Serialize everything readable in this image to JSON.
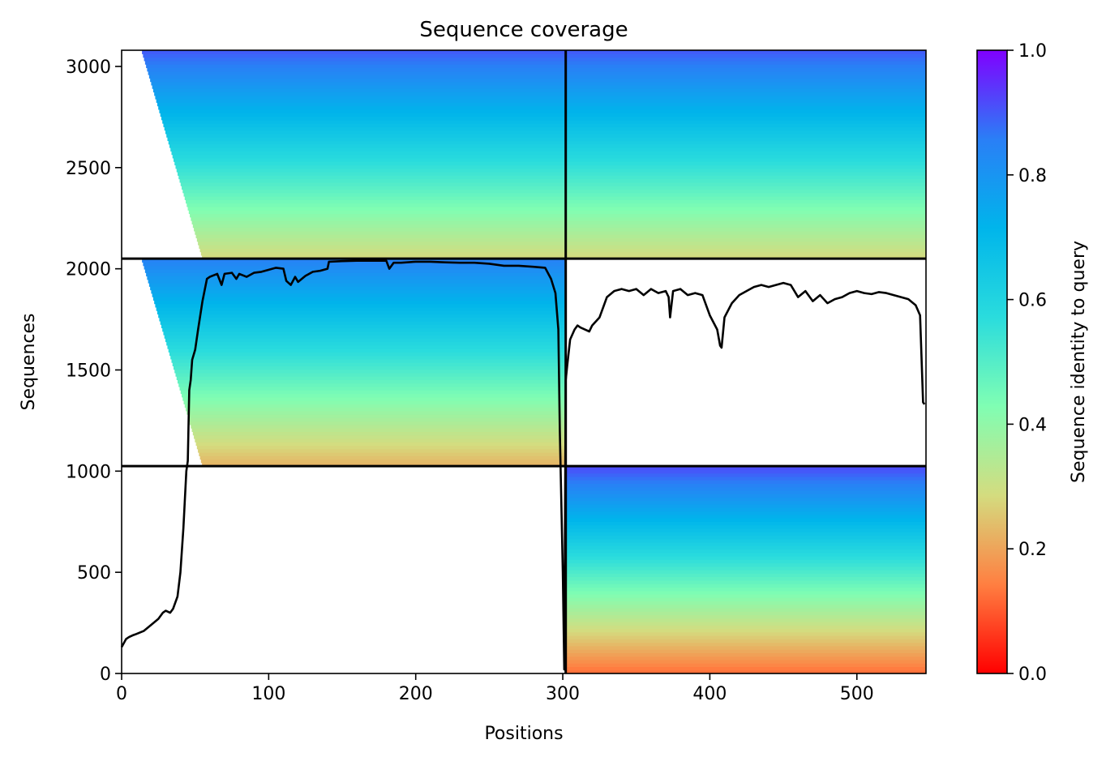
{
  "chart_data": {
    "type": "heatmap",
    "title": "Sequence coverage",
    "xlabel": "Positions",
    "ylabel": "Sequences",
    "xlim": [
      0,
      547
    ],
    "ylim": [
      0,
      3080
    ],
    "grid": false,
    "x_ticks": [
      0,
      100,
      200,
      300,
      400,
      500
    ],
    "x_tick_labels": [
      "0",
      "100",
      "200",
      "300",
      "400",
      "500"
    ],
    "y_ticks": [
      0,
      500,
      1000,
      1500,
      2000,
      2500,
      3000
    ],
    "y_tick_labels": [
      "0",
      "500",
      "1000",
      "1500",
      "2000",
      "2500",
      "3000"
    ],
    "colorbar": {
      "label": "Sequence identity to query",
      "colormap": "rainbow_r",
      "range": [
        0,
        1
      ],
      "ticks": [
        0,
        0.2,
        0.4,
        0.6,
        0.8,
        1.0
      ],
      "tick_labels": [
        "0.0",
        "0.2",
        "0.4",
        "0.6",
        "0.8",
        "1.0"
      ],
      "stops": [
        "#ff0000",
        "#ff7f41",
        "#d4dc7f",
        "#80feb3",
        "#2adcdd",
        "#00b5eb",
        "#2a7ff6",
        "#8000ff"
      ]
    },
    "chain_boundary_x": [
      302
    ],
    "block_boundary_y": [
      1025,
      2050
    ],
    "blocks": [
      {
        "rows": [
          2050,
          3080
        ],
        "cols": [
          0,
          302
        ],
        "coverage_start": 45,
        "identity_top": 0.9,
        "identity_bottom": 0.28
      },
      {
        "rows": [
          2050,
          3080
        ],
        "cols": [
          302,
          547
        ],
        "coverage_start": 302,
        "identity_top": 0.9,
        "identity_bottom": 0.28
      },
      {
        "rows": [
          1025,
          2050
        ],
        "cols": [
          0,
          302
        ],
        "coverage_start": 45,
        "identity_top": 0.85,
        "identity_bottom": 0.22
      },
      {
        "rows": [
          0,
          1025
        ],
        "cols": [
          302,
          547
        ],
        "coverage_start": 302,
        "identity_top": 0.92,
        "identity_bottom": 0.12
      }
    ],
    "coverage_line": {
      "x": [
        0,
        3,
        5,
        8,
        10,
        15,
        20,
        25,
        28,
        30,
        33,
        35,
        38,
        40,
        42,
        44,
        45,
        46,
        47,
        48,
        50,
        52,
        55,
        58,
        60,
        65,
        68,
        70,
        75,
        78,
        80,
        85,
        90,
        95,
        100,
        105,
        110,
        112,
        115,
        118,
        120,
        125,
        130,
        135,
        140,
        141,
        150,
        160,
        170,
        180,
        182,
        185,
        190,
        200,
        210,
        220,
        230,
        240,
        250,
        260,
        270,
        280,
        288,
        292,
        295,
        297,
        298,
        300,
        301,
        302,
        303,
        305,
        308,
        310,
        312,
        315,
        318,
        320,
        325,
        330,
        335,
        340,
        345,
        350,
        355,
        360,
        365,
        370,
        372,
        373,
        375,
        380,
        385,
        390,
        395,
        400,
        405,
        407,
        408,
        410,
        415,
        420,
        425,
        430,
        435,
        440,
        445,
        450,
        455,
        460,
        465,
        470,
        475,
        480,
        485,
        490,
        495,
        500,
        505,
        510,
        515,
        520,
        525,
        530,
        535,
        540,
        543,
        545,
        546
      ],
      "y": [
        130,
        170,
        180,
        190,
        195,
        210,
        240,
        270,
        300,
        310,
        300,
        320,
        380,
        500,
        720,
        1000,
        1050,
        1400,
        1450,
        1550,
        1600,
        1700,
        1840,
        1950,
        1960,
        1975,
        1920,
        1975,
        1980,
        1950,
        1975,
        1960,
        1980,
        1985,
        1995,
        2005,
        2000,
        1940,
        1920,
        1960,
        1935,
        1965,
        1985,
        1990,
        2000,
        2035,
        2038,
        2040,
        2040,
        2040,
        2000,
        2030,
        2030,
        2035,
        2035,
        2032,
        2030,
        2030,
        2025,
        2015,
        2015,
        2010,
        2005,
        1950,
        1880,
        1700,
        1200,
        500,
        20,
        1450,
        1520,
        1650,
        1700,
        1720,
        1710,
        1700,
        1690,
        1720,
        1760,
        1860,
        1890,
        1900,
        1890,
        1900,
        1870,
        1900,
        1880,
        1890,
        1860,
        1760,
        1890,
        1900,
        1870,
        1880,
        1870,
        1770,
        1700,
        1620,
        1610,
        1760,
        1830,
        1870,
        1890,
        1910,
        1920,
        1910,
        1920,
        1930,
        1920,
        1860,
        1890,
        1840,
        1870,
        1830,
        1850,
        1860,
        1880,
        1890,
        1880,
        1875,
        1885,
        1880,
        1870,
        1860,
        1850,
        1820,
        1770,
        1340,
        1330
      ]
    }
  }
}
